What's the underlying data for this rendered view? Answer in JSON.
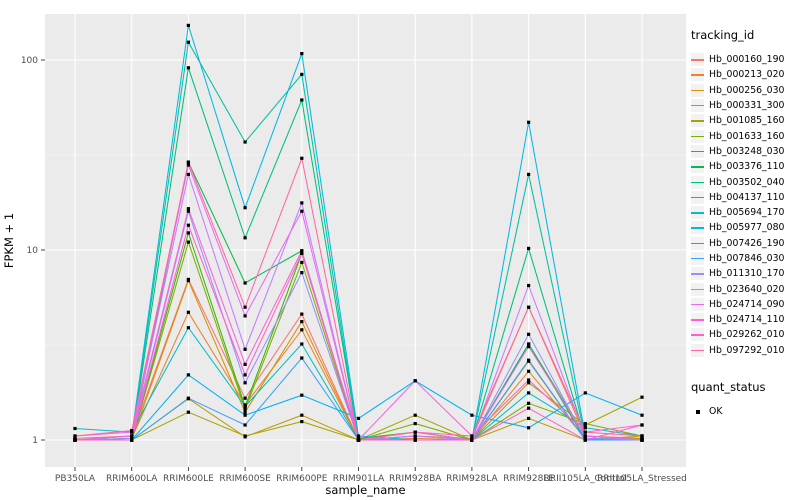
{
  "figure": {
    "background": "#ffffff",
    "panel_background": "#ebebeb",
    "grid_color": "#ffffff",
    "tick_label_color": "#4d4d4d",
    "axis_title_color": "#000000",
    "point_color": "#000000"
  },
  "chart_data": {
    "type": "line",
    "title": "",
    "xlabel": "sample_name",
    "ylabel": "FPKM + 1",
    "y_scale": "log10",
    "y_ticks": [
      1,
      10,
      100
    ],
    "y_minor_ticks": [
      3.162,
      31.62
    ],
    "ylim": [
      0.72,
      174
    ],
    "grid": true,
    "legend_position": "right",
    "categories": [
      "PB350LA",
      "RRIM600LA",
      "RRIM600LE",
      "RRIM600SE",
      "RRIM600PE",
      "RRIM901LA",
      "RRIM928BA",
      "RRIM928LA",
      "RRIM928LE",
      "RRII105LA_Control",
      "RRII105LA_Stressed"
    ],
    "legend": {
      "title": "tracking_id"
    },
    "quant_legend": {
      "title": "quant_status",
      "items": [
        {
          "label": "OK",
          "shape": "black-square"
        }
      ]
    },
    "series": [
      {
        "name": "Hb_000160_190",
        "color": "#F8766D",
        "values": [
          1.02,
          1.05,
          7.0,
          1.66,
          4.6,
          1.0,
          1.05,
          1.02,
          5.0,
          1.05,
          1.02
        ]
      },
      {
        "name": "Hb_000213_020",
        "color": "#EA8331",
        "values": [
          1.0,
          1.02,
          4.7,
          1.53,
          3.8,
          1.0,
          1.02,
          1.0,
          2.3,
          1.02,
          1.0
        ]
      },
      {
        "name": "Hb_000256_030",
        "color": "#D89000",
        "values": [
          1.0,
          1.0,
          6.9,
          1.4,
          4.2,
          1.0,
          1.1,
          1.0,
          2.6,
          1.0,
          1.05
        ]
      },
      {
        "name": "Hb_000331_300",
        "color": "#C09B00",
        "values": [
          1.0,
          1.0,
          1.65,
          1.04,
          1.35,
          1.0,
          1.0,
          1.0,
          1.3,
          1.0,
          1.02
        ]
      },
      {
        "name": "Hb_001085_160",
        "color": "#A3A500",
        "values": [
          1.0,
          1.0,
          1.4,
          1.05,
          1.25,
          1.0,
          1.35,
          1.0,
          2.0,
          1.2,
          1.68
        ]
      },
      {
        "name": "Hb_001633_160",
        "color": "#7CAE00",
        "values": [
          1.0,
          1.0,
          11.0,
          1.45,
          8.6,
          1.0,
          1.22,
          1.0,
          1.56,
          1.22,
          1.05
        ]
      },
      {
        "name": "Hb_003248_030",
        "color": "#39B600",
        "values": [
          1.0,
          1.0,
          12.3,
          1.5,
          9.6,
          1.02,
          1.1,
          1.0,
          3.2,
          1.05,
          1.0
        ]
      },
      {
        "name": "Hb_003376_110",
        "color": "#00BB4E",
        "values": [
          1.0,
          1.0,
          29.0,
          6.7,
          9.9,
          1.0,
          1.0,
          1.0,
          3.2,
          1.0,
          1.0
        ]
      },
      {
        "name": "Hb_003502_040",
        "color": "#00BF7D",
        "values": [
          1.0,
          1.0,
          91.0,
          11.6,
          61.6,
          1.0,
          1.0,
          1.0,
          10.2,
          1.02,
          1.0
        ]
      },
      {
        "name": "Hb_004137_110",
        "color": "#00C1A3",
        "values": [
          1.0,
          1.02,
          124.0,
          37.0,
          84.0,
          1.0,
          1.0,
          1.0,
          25.0,
          1.02,
          1.0
        ]
      },
      {
        "name": "Hb_005694_170",
        "color": "#00BFC4",
        "values": [
          1.15,
          1.1,
          3.9,
          1.5,
          3.2,
          1.0,
          1.05,
          1.0,
          1.77,
          1.16,
          1.05
        ]
      },
      {
        "name": "Hb_005977_080",
        "color": "#00BAE0",
        "values": [
          1.0,
          1.05,
          152.0,
          16.7,
          108.0,
          1.05,
          1.0,
          1.0,
          47.0,
          1.05,
          1.0
        ]
      },
      {
        "name": "Hb_007426_190",
        "color": "#00B0F6",
        "values": [
          1.0,
          1.0,
          2.2,
          1.35,
          1.72,
          1.3,
          2.05,
          1.35,
          1.16,
          1.77,
          1.35
        ]
      },
      {
        "name": "Hb_007846_030",
        "color": "#35A2FF",
        "values": [
          1.0,
          1.0,
          1.66,
          1.2,
          2.7,
          1.0,
          1.0,
          1.0,
          2.63,
          1.0,
          1.0
        ]
      },
      {
        "name": "Hb_011310_170",
        "color": "#9590FF",
        "values": [
          1.0,
          1.02,
          16.0,
          2.0,
          7.6,
          1.0,
          1.0,
          1.0,
          3.6,
          1.02,
          1.0
        ]
      },
      {
        "name": "Hb_023640_020",
        "color": "#C77CFF",
        "values": [
          1.0,
          1.05,
          25.0,
          3.0,
          17.7,
          1.0,
          1.05,
          1.0,
          6.5,
          1.05,
          1.0
        ]
      },
      {
        "name": "Hb_024714_090",
        "color": "#E76BF3",
        "values": [
          1.05,
          1.1,
          28.0,
          4.5,
          16.0,
          1.0,
          1.1,
          1.0,
          3.1,
          1.05,
          1.0
        ]
      },
      {
        "name": "Hb_024714_110",
        "color": "#FA62DB",
        "values": [
          1.0,
          1.05,
          16.5,
          2.5,
          9.9,
          1.0,
          2.05,
          1.05,
          2.07,
          1.1,
          1.2
        ]
      },
      {
        "name": "Hb_029262_010",
        "color": "#FF61C9",
        "values": [
          1.0,
          1.0,
          13.5,
          2.2,
          9.6,
          1.0,
          1.0,
          1.0,
          1.47,
          1.0,
          1.2
        ]
      },
      {
        "name": "Hb_097292_010",
        "color": "#FF67A4",
        "values": [
          1.05,
          1.12,
          29.0,
          5.0,
          30.4,
          1.0,
          1.1,
          1.05,
          5.0,
          1.1,
          1.05
        ]
      }
    ]
  }
}
